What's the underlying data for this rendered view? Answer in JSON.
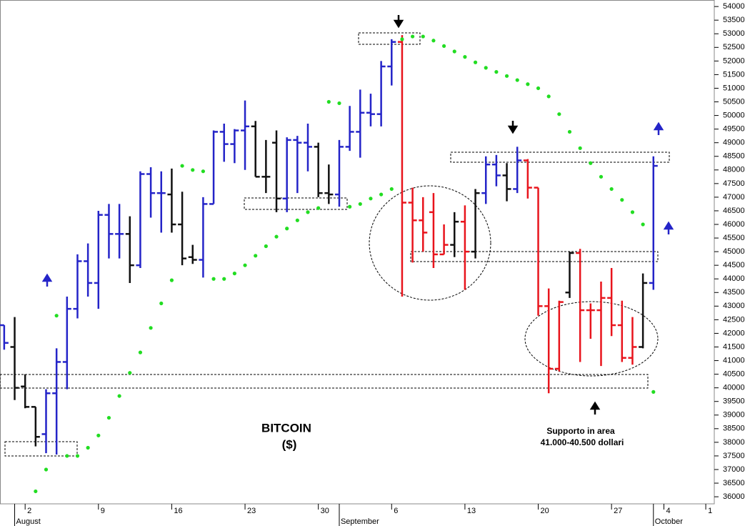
{
  "chart_data": {
    "type": "ohlc",
    "title": "BITCOIN",
    "subtitle": "($)",
    "annotations": [
      "Supporto in area",
      "41.000-40.500 dollari"
    ],
    "categories": [
      null,
      null,
      "2",
      null,
      null,
      null,
      null,
      null,
      null,
      "9",
      null,
      null,
      null,
      null,
      null,
      null,
      "16",
      null,
      null,
      null,
      null,
      null,
      null,
      "23",
      null,
      null,
      null,
      null,
      null,
      null,
      "30",
      null,
      null,
      null,
      null,
      null,
      null,
      "6",
      null,
      null,
      null,
      null,
      null,
      null,
      "13",
      null,
      null,
      null,
      null,
      null,
      null,
      "20",
      null,
      null,
      null,
      null,
      null,
      null,
      "27",
      null,
      null,
      null,
      null,
      "4",
      null,
      null,
      null,
      "1"
    ],
    "months": [
      null,
      "August",
      null,
      null,
      null,
      null,
      null,
      null,
      null,
      null,
      null,
      null,
      null,
      null,
      null,
      null,
      null,
      null,
      null,
      null,
      null,
      null,
      null,
      null,
      null,
      null,
      null,
      null,
      null,
      null,
      null,
      null,
      "September",
      null,
      null,
      null,
      null,
      null,
      null,
      null,
      null,
      null,
      null,
      null,
      null,
      null,
      null,
      null,
      null,
      null,
      null,
      null,
      null,
      null,
      null,
      null,
      null,
      null,
      null,
      null,
      null,
      null,
      "October",
      null,
      null,
      null,
      null,
      null
    ],
    "open": [
      42300,
      41500,
      40050,
      39300,
      38300,
      39800,
      40950,
      42900,
      44650,
      43850,
      46350,
      45650,
      45650,
      44500,
      47850,
      47150,
      47100,
      46000,
      44800,
      44700,
      46750,
      49400,
      48950,
      49450,
      49600,
      47750,
      49000,
      46950,
      49100,
      49000,
      48850,
      47150,
      47100,
      48850,
      49400,
      50100,
      50050,
      51800,
      52700,
      46800,
      46150,
      46450,
      44900,
      45250,
      46100,
      45000,
      47150,
      48200,
      47800,
      47300,
      48350,
      47350,
      43000,
      40700,
      43500,
      44950,
      42850,
      42850,
      43300,
      42300,
      41100,
      41500,
      43850,
      null,
      null,
      null,
      null,
      null
    ],
    "high": [
      42300,
      42600,
      40500,
      39300,
      39950,
      41450,
      43350,
      44900,
      45300,
      46500,
      46750,
      46750,
      46300,
      47950,
      48100,
      47950,
      48050,
      47200,
      45250,
      47000,
      49450,
      49700,
      49500,
      50550,
      49800,
      49100,
      49450,
      49200,
      49250,
      49700,
      49000,
      48200,
      49100,
      50350,
      50950,
      50800,
      52000,
      52800,
      52950,
      47350,
      47000,
      47150,
      46000,
      46450,
      46700,
      47300,
      48500,
      48550,
      48250,
      48850,
      48400,
      47350,
      43650,
      43200,
      45000,
      45100,
      43100,
      43900,
      44400,
      43200,
      42600,
      44200,
      48500,
      null,
      null,
      null,
      null,
      null
    ],
    "low": [
      41400,
      39550,
      39250,
      37850,
      37600,
      37550,
      39950,
      42550,
      43350,
      42900,
      44750,
      44750,
      43850,
      44400,
      46250,
      45700,
      45700,
      44500,
      44550,
      44050,
      46750,
      48300,
      48250,
      48000,
      47750,
      47150,
      46450,
      46450,
      47150,
      47950,
      47000,
      46750,
      46650,
      48700,
      48450,
      49600,
      49600,
      51100,
      43350,
      44600,
      45000,
      44400,
      44900,
      44800,
      43600,
      44750,
      46750,
      47400,
      46850,
      47150,
      46950,
      42650,
      39800,
      40600,
      43300,
      40950,
      41800,
      40800,
      41900,
      40950,
      40850,
      41450,
      43600,
      null,
      null,
      null,
      null,
      null
    ],
    "close": [
      41650,
      40000,
      39300,
      38200,
      39800,
      40950,
      42900,
      44650,
      43850,
      46350,
      45650,
      45650,
      44500,
      47850,
      47150,
      47150,
      46000,
      44750,
      44700,
      46750,
      49400,
      48950,
      49450,
      49600,
      47750,
      47750,
      46950,
      49100,
      49000,
      48850,
      47150,
      47100,
      48850,
      49400,
      50100,
      50050,
      51800,
      52700,
      46800,
      46150,
      45700,
      44900,
      45250,
      46100,
      45000,
      47150,
      48200,
      47800,
      47300,
      48350,
      47350,
      43000,
      40700,
      43150,
      44950,
      42850,
      42850,
      43300,
      42300,
      41100,
      41500,
      43850,
      48150,
      null,
      null,
      null,
      null,
      null
    ],
    "colors": [
      "#2424c8",
      "#111111",
      "#111111",
      "#111111",
      "#2424c8",
      "#2424c8",
      "#2424c8",
      "#2424c8",
      "#2424c8",
      "#2424c8",
      "#2424c8",
      "#2424c8",
      "#111111",
      "#2424c8",
      "#2424c8",
      "#2424c8",
      "#111111",
      "#111111",
      "#111111",
      "#2424c8",
      "#2424c8",
      "#2424c8",
      "#2424c8",
      "#2424c8",
      "#111111",
      "#111111",
      "#111111",
      "#2424c8",
      "#2424c8",
      "#2424c8",
      "#111111",
      "#111111",
      "#2424c8",
      "#2424c8",
      "#2424c8",
      "#2424c8",
      "#2424c8",
      "#2424c8",
      "#e8141c",
      "#e8141c",
      "#e8141c",
      "#e8141c",
      "#e8141c",
      "#111111",
      "#e8141c",
      "#111111",
      "#2424c8",
      "#2424c8",
      "#111111",
      "#2424c8",
      "#e8141c",
      "#e8141c",
      "#e8141c",
      "#e8141c",
      "#111111",
      "#e8141c",
      "#e8141c",
      "#e8141c",
      "#e8141c",
      "#e8141c",
      "#e8141c",
      "#111111",
      "#2424c8",
      null,
      null,
      null,
      null,
      null
    ],
    "sar": {
      "color": "#22dd22",
      "values": [
        null,
        null,
        null,
        36200,
        37000,
        42650,
        37500,
        37500,
        37800,
        38250,
        38900,
        39700,
        40550,
        41300,
        42200,
        43100,
        43950,
        48150,
        48000,
        47950,
        44000,
        44000,
        44200,
        44500,
        44850,
        45200,
        45550,
        45850,
        46150,
        46450,
        46600,
        50500,
        50450,
        46650,
        46750,
        46950,
        47100,
        47300,
        52800,
        52900,
        52900,
        52750,
        52550,
        52350,
        52150,
        51950,
        51750,
        51600,
        51450,
        51300,
        51150,
        51000,
        50700,
        50050,
        49400,
        48800,
        48250,
        47750,
        47300,
        46900,
        46450,
        46000,
        39850,
        null,
        null,
        null,
        null,
        null
      ]
    },
    "ylim": [
      35740,
      54240
    ],
    "yticks": [
      36000,
      36500,
      37000,
      37500,
      38000,
      38500,
      39000,
      39500,
      40000,
      40500,
      41000,
      41500,
      42000,
      42500,
      43000,
      43500,
      44000,
      44500,
      45000,
      45500,
      46000,
      46500,
      47000,
      47500,
      48000,
      48500,
      49000,
      49500,
      50000,
      50500,
      51000,
      51500,
      52000,
      52500,
      53000,
      53500,
      54000
    ]
  }
}
